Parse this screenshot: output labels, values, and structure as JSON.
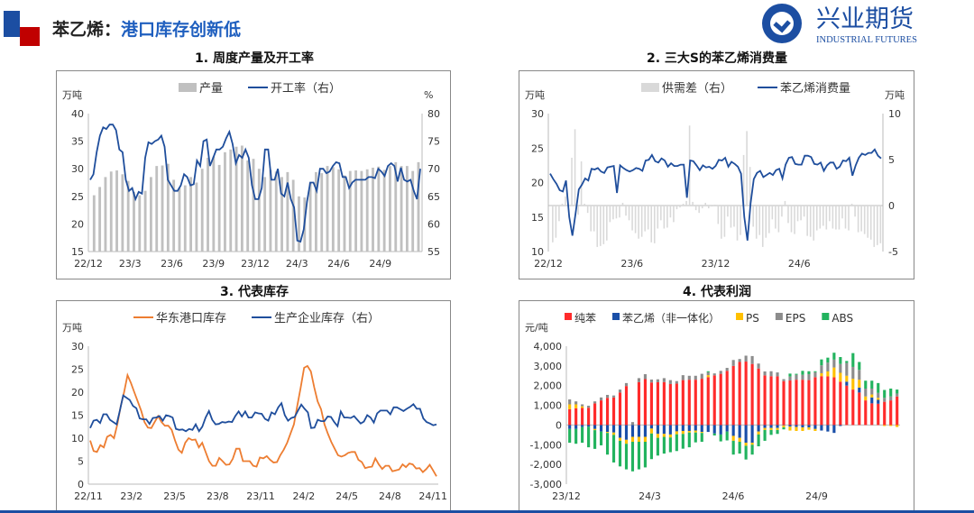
{
  "header": {
    "title_prefix": "苯乙烯：",
    "title_main": "港口库存创新低",
    "logo_cn": "兴业期货",
    "logo_en": "INDUSTRIAL FUTURES"
  },
  "colors": {
    "brand_blue": "#1c4ea2",
    "brand_red": "#c00000",
    "line_blue": "#1f4e9c",
    "orange": "#ed7d31",
    "bar_gray": "#c0c0c0"
  },
  "chart_data": [
    {
      "type": "bar+line",
      "title": "1. 周度产量及开工率",
      "ylabel_left": "万吨",
      "ylabel_right": "%",
      "ylim": [
        15,
        40
      ],
      "ylim_right": [
        55,
        80
      ],
      "yticks": [
        "40",
        "35",
        "30",
        "25",
        "20",
        "15"
      ],
      "yticks_right": [
        "80",
        "75",
        "70",
        "65",
        "60",
        "55"
      ],
      "xticks": [
        "22/12",
        "23/3",
        "23/6",
        "23/9",
        "23/12",
        "24/3",
        "24/6",
        "24/9"
      ],
      "legend_position": "top",
      "series": [
        {
          "name": "产量",
          "type": "bar",
          "axis": "left",
          "color": "#c0c0c0",
          "values": [
            25.2,
            26.7,
            28.5,
            29.5,
            29.7,
            29,
            27.8,
            25.8,
            25.2,
            26,
            28.5,
            30.5,
            30.6,
            30.9,
            28,
            26.5,
            27,
            28.5,
            27.5,
            30,
            32,
            32.2,
            30.7,
            33,
            33.5,
            34,
            34.2,
            31.5,
            31.8,
            30,
            28.5,
            29.8,
            29.5,
            28.5,
            29.4,
            28,
            25,
            24.8,
            27.5,
            29.4,
            29.2,
            30.5,
            30.3,
            29.9,
            28.8,
            29.6,
            29.7,
            29.6,
            29.9,
            30.2,
            30.4,
            29.8,
            30.5,
            31.2,
            30.5,
            30.5,
            29.6,
            31.2
          ]
        },
        {
          "name": "开工率（右）",
          "type": "line",
          "axis": "right",
          "color": "#1f4e9c",
          "values": [
            68,
            69,
            73,
            76,
            77.5,
            77.2,
            78,
            78,
            77,
            73.5,
            73,
            68,
            66,
            66.5,
            64.5,
            65.8,
            65.5,
            72,
            74.8,
            74.5,
            75,
            75.3,
            76,
            74,
            68,
            67,
            66,
            66,
            67,
            69,
            68.5,
            67,
            67.2,
            71.5,
            70.5,
            75,
            75.3,
            70.5,
            72,
            73.5,
            73.5,
            74,
            75.5,
            76.7,
            74.5,
            71,
            72.5,
            72,
            73.5,
            72,
            67,
            64.5,
            64.5,
            66.5,
            73.5,
            73.5,
            68,
            68,
            70,
            65.5,
            65,
            67.5,
            64.5,
            63,
            57,
            56.8,
            59,
            64,
            67.5,
            67.5,
            66,
            70,
            70,
            69.2,
            69.5,
            70.5,
            71.2,
            71,
            68.5,
            68.5,
            66.5,
            67.5,
            68,
            68,
            68,
            68,
            68.5,
            68.5,
            68.3,
            70,
            69.5,
            68.7,
            70.5,
            71,
            70.5,
            67.7,
            70.2,
            68,
            67.7,
            68,
            66,
            64.5,
            70
          ]
        }
      ]
    },
    {
      "type": "bar+line",
      "title": "2. 三大S的苯乙烯消费量",
      "ylabel_left": "万吨",
      "ylabel_right": "万吨",
      "ylim": [
        10,
        30
      ],
      "ylim_right": [
        -5,
        10
      ],
      "yticks": [
        "30",
        "25",
        "20",
        "15",
        "10"
      ],
      "yticks_right": [
        "10",
        "5",
        "0",
        "-5"
      ],
      "xticks": [
        "22/12",
        "23/6",
        "23/12",
        "24/6"
      ],
      "legend_position": "top",
      "series": [
        {
          "name": "供需差（右）",
          "type": "bar",
          "axis": "right",
          "color": "#d9d9d9",
          "values": [
            -4,
            -3.5,
            -1.7,
            0.2,
            1,
            0,
            5.2,
            8.3,
            -1,
            4.8,
            0.2,
            -0.8,
            -2.8,
            -2.8,
            -4.5,
            -4.4,
            -4.2,
            -3.8,
            -1.8,
            -1.5,
            -1.4,
            -1.3,
            0.3,
            -1.1,
            -1.6,
            -2.7,
            -3,
            -3.6,
            -3.4,
            -2.8,
            -2.6,
            -4,
            -4.1,
            -2.5,
            -1.6,
            -2.5,
            -2.4,
            -1.3,
            -1.8,
            -0.4,
            -0.2,
            0.2,
            0.5,
            8.7,
            0.4,
            -0.5,
            -0.8,
            -0.3,
            0.3,
            -0.3,
            -0.1,
            0.1,
            -2,
            -3.6,
            -3.4,
            -1.2,
            -2.4,
            -2.3,
            -3.8,
            -3.2,
            5.5,
            8.1,
            4.2,
            -2.3,
            -3.6,
            -3.2,
            -4.5,
            -3.5,
            -3,
            -1.5,
            -2.5,
            -2.9,
            -1.2,
            0.5,
            -1.9,
            -2.9,
            -3.1,
            -1.7,
            -1.6,
            -1.2,
            -3.3,
            -3.4,
            -3.8,
            -2.7,
            -2.5,
            -2.2,
            -2.6,
            -1.7,
            -2.5,
            -2.6,
            -2.6,
            -1.4,
            -2.5,
            -2.7,
            0.2,
            -1.2,
            -2.9,
            -2.8,
            -3.1,
            -3.5,
            -3.7,
            -4.5,
            -4.3,
            -4.1
          ]
        },
        {
          "name": "苯乙烯消费量",
          "type": "line",
          "axis": "left",
          "color": "#1f4e9c",
          "values": [
            21.3,
            20.5,
            19.8,
            18.9,
            18.7,
            20.3,
            15,
            12.3,
            15.5,
            19,
            19.7,
            20.6,
            20.3,
            22,
            21.9,
            22.1,
            21.6,
            21.4,
            22.2,
            22.3,
            22.4,
            18.5,
            22.5,
            22.1,
            21.8,
            21.6,
            21.8,
            22.1,
            22,
            21.7,
            23.2,
            23.3,
            24,
            23.1,
            22.9,
            23.5,
            23.2,
            22.3,
            22.8,
            22.4,
            22.4,
            22.6,
            22.6,
            17.8,
            23.2,
            23.1,
            22.5,
            21.8,
            22.5,
            22.2,
            22.3,
            22,
            22.4,
            23.3,
            23.2,
            23.6,
            22.3,
            23,
            22.7,
            22.3,
            21.3,
            15,
            11.6,
            17,
            20.5,
            21.4,
            21.7,
            20.8,
            21.1,
            21.4,
            21.1,
            21.8,
            22,
            20.6,
            22.6,
            23.6,
            23.7,
            22.7,
            22.6,
            22.6,
            23.9,
            23.9,
            23.7,
            22.7,
            22.6,
            22.9,
            21.7,
            22.5,
            22.9,
            22.9,
            22,
            22.3,
            23.2,
            23.1,
            23.6,
            21,
            22.5,
            23.6,
            24.2,
            24,
            24.3,
            24.3,
            24.8,
            23.9,
            23.5
          ]
        }
      ]
    },
    {
      "type": "line",
      "title": "3. 代表库存",
      "ylabel_left": "万吨",
      "ylim": [
        0,
        30
      ],
      "yticks": [
        "30",
        "25",
        "20",
        "15",
        "10",
        "5",
        "0"
      ],
      "xticks": [
        "22/11",
        "23/2",
        "23/5",
        "23/8",
        "23/11",
        "24/2",
        "24/5",
        "24/8",
        "24/11"
      ],
      "legend_position": "top",
      "series": [
        {
          "name": "华东港口库存",
          "color": "#ed7d31",
          "values": [
            9.5,
            7.2,
            7,
            8.5,
            8,
            10.3,
            10.7,
            10,
            13,
            17,
            20,
            23.7,
            22,
            20,
            18,
            16,
            13.5,
            12.3,
            12.2,
            13.5,
            14.8,
            13.5,
            12.7,
            12.7,
            11.8,
            9.5,
            7.5,
            6.8,
            9,
            10,
            9.6,
            9.7,
            8,
            9,
            7,
            5,
            4,
            4,
            5.7,
            5,
            4.2,
            4.3,
            5.5,
            7.7,
            7.7,
            5,
            5,
            5,
            4,
            3.8,
            5.8,
            5.6,
            6.1,
            5.3,
            4.7,
            4.8,
            6.3,
            7.5,
            9,
            11,
            13,
            17,
            21,
            25.3,
            25.7,
            24.5,
            21,
            18,
            16.3,
            13,
            11,
            9.2,
            7.7,
            6.3,
            6,
            6.3,
            6.8,
            7,
            7,
            5.3,
            4.8,
            3.5,
            3.7,
            3.8,
            5.6,
            4.3,
            3.3,
            4,
            4,
            2.8,
            3,
            3.2,
            4.3,
            3.7,
            4.5,
            4.3,
            3.4,
            3.5,
            2.6,
            3.3,
            4.2,
            3,
            1.7
          ]
        },
        {
          "name": "生产企业库存（右）",
          "color": "#1f4e9c",
          "values": [
            12.2,
            13.8,
            14,
            13.3,
            15.2,
            15.2,
            14,
            13.5,
            13,
            16,
            19.3,
            18.8,
            18.3,
            17,
            16.5,
            14.3,
            14.1,
            14.1,
            13.1,
            14.4,
            14.5,
            14.8,
            13.8,
            15,
            14.8,
            14.5,
            12,
            11.8,
            11.9,
            11.5,
            12,
            11.8,
            13,
            11.5,
            12.5,
            14.5,
            15.9,
            14,
            13,
            13.1,
            13.5,
            13.4,
            13.6,
            13.5,
            14.8,
            15.8,
            14.7,
            15.8,
            14.5,
            14.5,
            15.6,
            15.4,
            15.3,
            14.2,
            13.8,
            15.6,
            15.2,
            16.7,
            17.6,
            15,
            13.8,
            14.4,
            14.6,
            16,
            17.3,
            16.4,
            15.6,
            12.2,
            12.3,
            14,
            13.7,
            13.7,
            14.7,
            14.6,
            13.5,
            12.6,
            15.8,
            14.5,
            14.5,
            14.4,
            14.8,
            14,
            13.2,
            13.6,
            15,
            14.5,
            13.4,
            15.4,
            16,
            16,
            16,
            15.2,
            16.7,
            16.7,
            16.3,
            15.9,
            16.4,
            16.8,
            17.4,
            16.4,
            16.4,
            14.3,
            13.5,
            13.2,
            12.8,
            13
          ]
        }
      ]
    },
    {
      "type": "stacked-bar",
      "title": "4. 代表利润",
      "ylabel_left": "元/吨",
      "ylim": [
        -3000,
        4000
      ],
      "yticks": [
        "4,000",
        "3,000",
        "2,000",
        "1,000",
        "0",
        "-1,000",
        "-2,000",
        "-3,000"
      ],
      "xticks": [
        "23/12",
        "24/3",
        "24/6",
        "24/9"
      ],
      "legend_position": "top",
      "series": [
        {
          "name": "纯苯",
          "color": "#ff2b2b",
          "values": [
            800,
            850,
            870,
            880,
            1100,
            1250,
            1380,
            1400,
            1650,
            1980,
            0,
            2180,
            2330,
            2160,
            2170,
            2180,
            2080,
            2100,
            2280,
            2300,
            2300,
            2350,
            2430,
            2520,
            2600,
            2750,
            3000,
            3200,
            3220,
            3100,
            2870,
            2520,
            2480,
            2470,
            2230,
            2260,
            2300,
            2300,
            2280,
            2430,
            2480,
            2470,
            2420,
            2200,
            2000,
            1800,
            1650,
            1250,
            1100,
            1080,
            1180,
            1250,
            1450
          ]
        },
        {
          "name": "苯乙烯（非一体化）",
          "color": "#1a4fa8",
          "values": [
            -200,
            -200,
            -100,
            -80,
            -200,
            -330,
            -350,
            -380,
            -650,
            -750,
            -600,
            -600,
            -600,
            -180,
            -450,
            -450,
            -480,
            -320,
            -300,
            -300,
            -280,
            -350,
            -350,
            -430,
            -480,
            -330,
            -550,
            -650,
            -900,
            -900,
            -330,
            -150,
            -150,
            -150,
            -20,
            -80,
            -100,
            -120,
            -120,
            -200,
            -280,
            -330,
            -400,
            -50,
            200,
            0,
            250,
            0,
            300,
            200,
            0,
            0,
            0
          ]
        },
        {
          "name": "PS",
          "color": "#ffc000",
          "values": [
            250,
            200,
            80,
            0,
            -60,
            0,
            -50,
            -120,
            -150,
            -200,
            -250,
            -250,
            -250,
            -250,
            -200,
            -150,
            -150,
            -150,
            -150,
            -80,
            -100,
            -50,
            100,
            0,
            0,
            0,
            -250,
            -200,
            -150,
            -100,
            -150,
            -100,
            -100,
            -100,
            -100,
            -200,
            -200,
            -180,
            -120,
            -100,
            150,
            250,
            500,
            450,
            300,
            550,
            400,
            200,
            150,
            100,
            -50,
            -50,
            -100
          ]
        },
        {
          "name": "EPS",
          "color": "#8c8c8c",
          "values": [
            250,
            150,
            100,
            100,
            100,
            150,
            150,
            100,
            150,
            150,
            150,
            200,
            250,
            150,
            150,
            200,
            200,
            130,
            250,
            200,
            200,
            250,
            150,
            100,
            150,
            150,
            300,
            150,
            300,
            400,
            250,
            200,
            250,
            200,
            100,
            200,
            250,
            250,
            300,
            250,
            400,
            450,
            400,
            450,
            650,
            600,
            500,
            400,
            300,
            250,
            200,
            200,
            150
          ]
        },
        {
          "name": "ABS",
          "color": "#22b35e",
          "values": [
            -700,
            -750,
            -800,
            -1050,
            -950,
            -700,
            -1100,
            -1400,
            -1300,
            -1300,
            -1500,
            -1400,
            -1300,
            -1300,
            -900,
            -850,
            -750,
            -850,
            -750,
            -750,
            -500,
            -450,
            50,
            -100,
            -350,
            -450,
            -700,
            -600,
            -700,
            -500,
            -600,
            -550,
            -250,
            -200,
            -100,
            150,
            50,
            200,
            150,
            50,
            300,
            250,
            350,
            350,
            100,
            700,
            400,
            400,
            400,
            500,
            400,
            400,
            200
          ]
        }
      ]
    }
  ]
}
